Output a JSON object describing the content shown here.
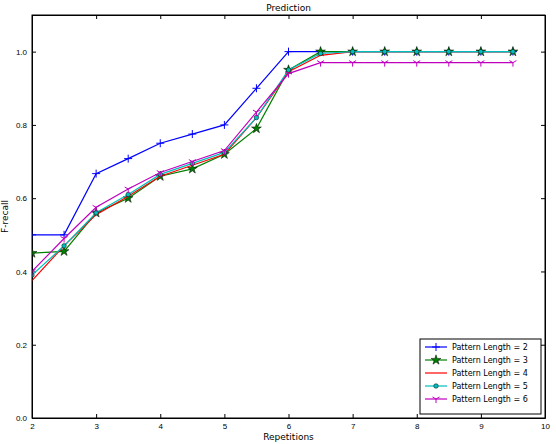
{
  "chart_data": {
    "type": "line",
    "title": "Prediction",
    "x_label": "Repetitions",
    "y_label": "F-recall",
    "x": [
      2,
      2.5,
      3,
      3.5,
      4,
      4.5,
      5,
      5.5,
      6,
      6.5,
      7,
      7.5,
      8,
      8.5,
      9,
      9.5
    ],
    "series": [
      {
        "name": "Pattern Length = 2",
        "color": "#0000ff",
        "marker": "plus",
        "values": [
          0.5,
          0.5,
          0.667,
          0.708,
          0.75,
          0.775,
          0.8,
          0.9,
          1.0,
          1.0,
          1.0,
          1.0,
          1.0,
          1.0,
          1.0,
          1.0
        ]
      },
      {
        "name": "Pattern Length = 3",
        "color": "#008000",
        "marker": "star",
        "values": [
          0.45,
          0.455,
          0.56,
          0.6,
          0.66,
          0.68,
          0.72,
          0.79,
          0.95,
          1.0,
          1.0,
          1.0,
          1.0,
          1.0,
          1.0,
          1.0
        ]
      },
      {
        "name": "Pattern Length = 4",
        "color": "#ff0000",
        "marker": "none",
        "values": [
          0.375,
          0.47,
          0.555,
          0.605,
          0.66,
          0.69,
          0.72,
          0.82,
          0.945,
          0.99,
          1.0,
          1.0,
          1.0,
          1.0,
          1.0,
          1.0
        ]
      },
      {
        "name": "Pattern Length = 5",
        "color": "#00bfbf",
        "marker": "circle",
        "values": [
          0.39,
          0.47,
          0.56,
          0.61,
          0.665,
          0.695,
          0.725,
          0.82,
          0.95,
          0.995,
          1.0,
          1.0,
          1.0,
          1.0,
          1.0,
          1.0
        ]
      },
      {
        "name": "Pattern Length = 6",
        "color": "#bf00bf",
        "marker": "tri_down",
        "values": [
          0.4,
          0.49,
          0.575,
          0.625,
          0.67,
          0.7,
          0.73,
          0.835,
          0.94,
          0.97,
          0.97,
          0.97,
          0.97,
          0.97,
          0.97,
          0.97
        ]
      }
    ],
    "xlim": [
      2,
      10
    ],
    "xticks": [
      2,
      3,
      4,
      5,
      6,
      7,
      8,
      9,
      10
    ],
    "ylim": [
      0,
      1.1
    ],
    "yticks": [
      {
        "value": 0,
        "label": "0.0"
      },
      0.2,
      0.4,
      0.6,
      0.8,
      {
        "value": 1.0,
        "label": "1.0"
      }
    ],
    "grid": false,
    "legend": "lower right"
  }
}
